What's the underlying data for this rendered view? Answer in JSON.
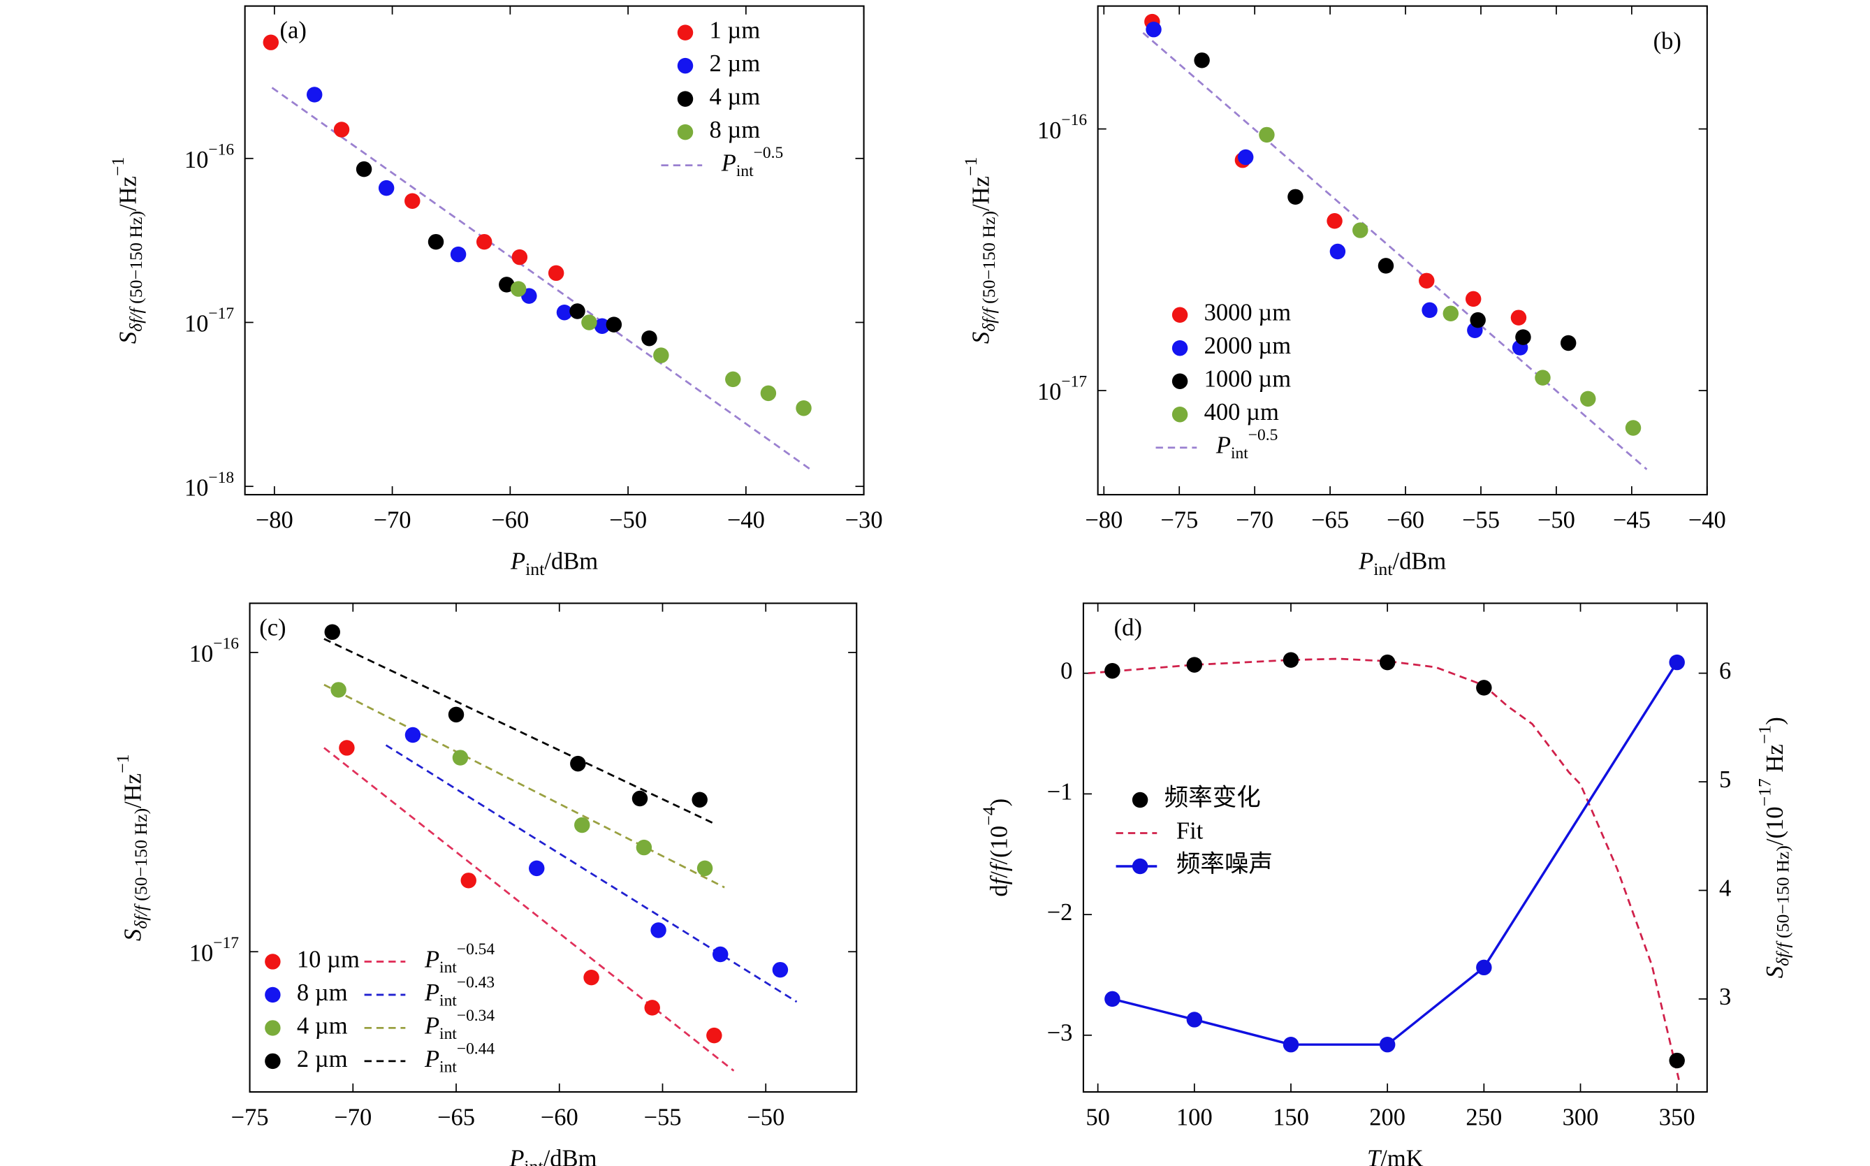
{
  "chart_data": [
    {
      "type": "scatter",
      "panel_label": "(a)",
      "xlabel": [
        {
          "text": "P",
          "role": "italic"
        },
        {
          "text": "int",
          "role": "sub"
        },
        {
          "text": "/dBm"
        }
      ],
      "ylabel": [
        {
          "text": "S",
          "role": "italic"
        },
        {
          "text": "δf/f",
          "role": "sub-italic"
        },
        {
          "text": " (50−150 Hz)",
          "role": "sub"
        },
        {
          "text": "/Hz"
        },
        {
          "text": "−1",
          "role": "sup"
        }
      ],
      "xlim": [
        -82.5,
        -30
      ],
      "ylim": [
        8.9e-19,
        8.5e-16
      ],
      "ylog": true,
      "xticks": [
        {
          "value": -80,
          "label": "−80"
        },
        {
          "value": -70,
          "label": "−70"
        },
        {
          "value": -60,
          "label": "−60"
        },
        {
          "value": -50,
          "label": "−50"
        },
        {
          "value": -40,
          "label": "−40"
        },
        {
          "value": -30,
          "label": "−30"
        }
      ],
      "yticks": [
        {
          "value": 1e-18,
          "label": [
            {
              "text": "10"
            },
            {
              "text": "−18",
              "role": "sup"
            }
          ]
        },
        {
          "value": 1e-17,
          "label": [
            {
              "text": "10"
            },
            {
              "text": "−17",
              "role": "sup"
            }
          ]
        },
        {
          "value": 1e-16,
          "label": [
            {
              "text": "10"
            },
            {
              "text": "−16",
              "role": "sup"
            }
          ]
        }
      ],
      "series": [
        {
          "name": "1 µm",
          "color": "#f01414",
          "kind": "scatter",
          "x": [
            -80.3,
            -74.3,
            -68.3,
            -62.2,
            -59.2,
            -56.1
          ],
          "values": [
            5.1e-16,
            1.5e-16,
            5.5e-17,
            3.1e-17,
            2.5e-17,
            2e-17
          ]
        },
        {
          "name": "2 µm",
          "color": "#1414f0",
          "kind": "scatter",
          "x": [
            -76.6,
            -70.5,
            -64.4,
            -58.4,
            -55.4,
            -52.2
          ],
          "values": [
            2.45e-16,
            6.6e-17,
            2.6e-17,
            1.45e-17,
            1.15e-17,
            9.5e-18
          ]
        },
        {
          "name": "4 µm",
          "color": "#000000",
          "kind": "scatter",
          "x": [
            -72.4,
            -66.3,
            -60.3,
            -54.3,
            -51.2,
            -48.2
          ],
          "values": [
            8.6e-17,
            3.1e-17,
            1.7e-17,
            1.17e-17,
            9.7e-18,
            8e-18
          ]
        },
        {
          "name": "8 µm",
          "color": "#7aac3a",
          "kind": "scatter",
          "x": [
            -59.3,
            -53.3,
            -47.2,
            -41.1,
            -38.1,
            -35.1
          ],
          "values": [
            1.6e-17,
            1e-17,
            6.3e-18,
            4.5e-18,
            3.7e-18,
            3e-18
          ]
        },
        {
          "name": [
            {
              "text": "P",
              "role": "italic"
            },
            {
              "text": "int",
              "role": "sub"
            },
            {
              "text": "−0.5",
              "role": "sup"
            }
          ],
          "color": "#9a80d0",
          "kind": "line",
          "dashed": true,
          "x": [
            -80.2,
            -34.4
          ],
          "values": [
            2.7e-16,
            1.25e-18
          ]
        }
      ]
    },
    {
      "type": "scatter",
      "panel_label": "(b)",
      "xlabel": [
        {
          "text": "P",
          "role": "italic"
        },
        {
          "text": "int",
          "role": "sub"
        },
        {
          "text": "/dBm"
        }
      ],
      "ylabel": [
        {
          "text": "S",
          "role": "italic"
        },
        {
          "text": "δf/f",
          "role": "sub-italic"
        },
        {
          "text": " (50−150 Hz)",
          "role": "sub"
        },
        {
          "text": "/Hz"
        },
        {
          "text": "−1",
          "role": "sup"
        }
      ],
      "xlim": [
        -80.4,
        -40
      ],
      "ylim": [
        4e-18,
        2.95e-16
      ],
      "ylog": true,
      "xticks": [
        {
          "value": -80,
          "label": "−80"
        },
        {
          "value": -75,
          "label": "−75"
        },
        {
          "value": -70,
          "label": "−70"
        },
        {
          "value": -65,
          "label": "−65"
        },
        {
          "value": -60,
          "label": "−60"
        },
        {
          "value": -55,
          "label": "−55"
        },
        {
          "value": -50,
          "label": "−50"
        },
        {
          "value": -45,
          "label": "−45"
        },
        {
          "value": -40,
          "label": "−40"
        }
      ],
      "yticks": [
        {
          "value": 1e-17,
          "label": [
            {
              "text": "10"
            },
            {
              "text": "−17",
              "role": "sup"
            }
          ]
        },
        {
          "value": 1e-16,
          "label": [
            {
              "text": "10"
            },
            {
              "text": "−16",
              "role": "sup"
            }
          ]
        }
      ],
      "series": [
        {
          "name": "3000 µm",
          "color": "#f01414",
          "kind": "scatter",
          "x": [
            -76.8,
            -70.8,
            -64.7,
            -58.6,
            -55.5,
            -52.5
          ],
          "values": [
            2.57e-16,
            7.6e-17,
            4.45e-17,
            2.63e-17,
            2.24e-17,
            1.9e-17
          ]
        },
        {
          "name": "2000 µm",
          "color": "#1414f0",
          "kind": "scatter",
          "x": [
            -76.7,
            -70.6,
            -64.5,
            -58.4,
            -55.4,
            -52.4
          ],
          "values": [
            2.4e-16,
            7.8e-17,
            3.4e-17,
            2.03e-17,
            1.7e-17,
            1.46e-17
          ]
        },
        {
          "name": "1000 µm",
          "color": "#000000",
          "kind": "scatter",
          "x": [
            -73.5,
            -67.3,
            -61.3,
            -55.2,
            -52.2,
            -49.2
          ],
          "values": [
            1.83e-16,
            5.5e-17,
            3e-17,
            1.86e-17,
            1.6e-17,
            1.52e-17
          ]
        },
        {
          "name": "400 µm",
          "color": "#7aac3a",
          "kind": "scatter",
          "x": [
            -69.2,
            -63.0,
            -57.0,
            -50.9,
            -47.9,
            -44.9
          ],
          "values": [
            9.5e-17,
            4.1e-17,
            1.97e-17,
            1.12e-17,
            9.3e-18,
            7.2e-18
          ]
        },
        {
          "name": [
            {
              "text": "P",
              "role": "italic"
            },
            {
              "text": "int",
              "role": "sub"
            },
            {
              "text": "−0.5",
              "role": "sup"
            }
          ],
          "color": "#9a80d0",
          "kind": "line",
          "dashed": true,
          "x": [
            -77.4,
            -44.0
          ],
          "values": [
            2.33e-16,
            5e-18
          ]
        }
      ]
    },
    {
      "type": "scatter",
      "panel_label": "(c)",
      "legend_columns": 2,
      "xlabel": [
        {
          "text": "P",
          "role": "italic"
        },
        {
          "text": "int",
          "role": "sub"
        },
        {
          "text": "/dBm"
        }
      ],
      "ylabel": [
        {
          "text": "S",
          "role": "italic"
        },
        {
          "text": "δf/f",
          "role": "sub-italic"
        },
        {
          "text": " (50−150 Hz)",
          "role": "sub"
        },
        {
          "text": "/Hz"
        },
        {
          "text": "−1",
          "role": "sup"
        }
      ],
      "xlim": [
        -75,
        -45.6
      ],
      "ylim": [
        3.4e-18,
        1.46e-16
      ],
      "ylog": true,
      "xticks": [
        {
          "value": -75,
          "label": "−75"
        },
        {
          "value": -70,
          "label": "−70"
        },
        {
          "value": -65,
          "label": "−65"
        },
        {
          "value": -60,
          "label": "−60"
        },
        {
          "value": -55,
          "label": "−55"
        },
        {
          "value": -50,
          "label": "−50"
        }
      ],
      "yticks": [
        {
          "value": 1e-17,
          "label": [
            {
              "text": "10"
            },
            {
              "text": "−17",
              "role": "sup"
            }
          ]
        },
        {
          "value": 1e-16,
          "label": [
            {
              "text": "10"
            },
            {
              "text": "−16",
              "role": "sup"
            }
          ]
        }
      ],
      "series": [
        {
          "name": "10 µm",
          "color": "#f01414",
          "kind": "scatter",
          "x": [
            -70.3,
            -64.4,
            -58.45,
            -55.5,
            -52.5
          ],
          "values": [
            4.8e-17,
            1.73e-17,
            8.2e-18,
            6.5e-18,
            5.25e-18
          ]
        },
        {
          "name": "8 µm",
          "color": "#1414f0",
          "kind": "scatter",
          "x": [
            -67.1,
            -61.1,
            -55.2,
            -52.2,
            -49.3
          ],
          "values": [
            5.3e-17,
            1.9e-17,
            1.18e-17,
            9.8e-18,
            8.7e-18
          ]
        },
        {
          "name": "4 µm",
          "color": "#7aac3a",
          "kind": "scatter",
          "x": [
            -70.7,
            -64.8,
            -58.9,
            -55.9,
            -52.95
          ],
          "values": [
            7.5e-17,
            4.45e-17,
            2.65e-17,
            2.23e-17,
            1.9e-17
          ]
        },
        {
          "name": "2 µm",
          "color": "#000000",
          "kind": "scatter",
          "x": [
            -71.0,
            -65.0,
            -59.1,
            -56.1,
            -53.2
          ],
          "values": [
            1.17e-16,
            6.2e-17,
            4.25e-17,
            3.25e-17,
            3.22e-17
          ]
        },
        {
          "name": [
            {
              "text": "P",
              "role": "italic"
            },
            {
              "text": "int",
              "role": "sub"
            },
            {
              "text": "−0.54",
              "role": "sup"
            }
          ],
          "color": "#e0305a",
          "kind": "line",
          "dashed": true,
          "x": [
            -71.4,
            -51.55
          ],
          "values": [
            4.8e-17,
            4e-18
          ]
        },
        {
          "name": [
            {
              "text": "P",
              "role": "italic"
            },
            {
              "text": "int",
              "role": "sub"
            },
            {
              "text": "−0.43",
              "role": "sup"
            }
          ],
          "color": "#2020d0",
          "kind": "line",
          "dashed": true,
          "x": [
            -68.4,
            -48.5
          ],
          "values": [
            4.9e-17,
            6.8e-18
          ]
        },
        {
          "name": [
            {
              "text": "P",
              "role": "italic"
            },
            {
              "text": "int",
              "role": "sub"
            },
            {
              "text": "−0.34",
              "role": "sup"
            }
          ],
          "color": "#99a040",
          "kind": "line",
          "dashed": true,
          "x": [
            -71.4,
            -52.0
          ],
          "values": [
            7.8e-17,
            1.64e-17
          ]
        },
        {
          "name": [
            {
              "text": "P",
              "role": "italic"
            },
            {
              "text": "int",
              "role": "sub"
            },
            {
              "text": "−0.44",
              "role": "sup"
            }
          ],
          "color": "#000000",
          "kind": "line",
          "dashed": true,
          "x": [
            -71.4,
            -52.5
          ],
          "values": [
            1.11e-16,
            2.68e-17
          ]
        }
      ]
    },
    {
      "type": "line",
      "panel_label": "(d)",
      "xlabel": [
        {
          "text": "T",
          "role": "italic"
        },
        {
          "text": "/mK"
        }
      ],
      "ylabel": [
        {
          "text": "d"
        },
        {
          "text": "f",
          "role": "italic"
        },
        {
          "text": "/"
        },
        {
          "text": "f",
          "role": "italic"
        },
        {
          "text": "/(10"
        },
        {
          "text": "−4",
          "role": "sup"
        },
        {
          "text": ")"
        }
      ],
      "y2label": [
        {
          "text": "S",
          "role": "italic"
        },
        {
          "text": "δf/f",
          "role": "sub-italic"
        },
        {
          "text": " (50−150 Hz)",
          "role": "sub"
        },
        {
          "text": "/(10"
        },
        {
          "text": "−17",
          "role": "sup"
        },
        {
          "text": " Hz"
        },
        {
          "text": "−1",
          "role": "sup"
        },
        {
          "text": ")"
        }
      ],
      "xlim": [
        42.5,
        365.6
      ],
      "ylim": [
        -3.47,
        0.58
      ],
      "y2lim": [
        2.144,
        6.644
      ],
      "xticks": [
        50,
        100,
        150,
        200,
        250,
        300,
        350
      ],
      "yticks": [
        0,
        {
          "value": -1,
          "label": "−1"
        },
        {
          "value": -2,
          "label": "−2"
        },
        {
          "value": -3,
          "label": "−3"
        }
      ],
      "y2ticks": [
        3,
        4,
        5,
        6
      ],
      "series": [
        {
          "name": "频率变化",
          "color": "#000000",
          "kind": "scatter",
          "x": [
            57.5,
            100,
            150,
            200,
            250,
            350
          ],
          "values": [
            0.02,
            0.07,
            0.11,
            0.09,
            -0.12,
            -3.21
          ]
        },
        {
          "name": "Fit",
          "color": "#d0204a",
          "kind": "line",
          "dashed": true,
          "x": [
            45,
            100,
            150,
            175,
            200,
            225,
            250,
            262,
            275,
            294,
            300,
            319,
            337,
            351
          ],
          "values": [
            0.0,
            0.07,
            0.11,
            0.12,
            0.1,
            0.05,
            -0.1,
            -0.27,
            -0.42,
            -0.82,
            -0.92,
            -1.62,
            -2.42,
            -3.37
          ]
        },
        {
          "name": "频率噪声",
          "color": "#1010e0",
          "kind": "line",
          "markers": true,
          "axis": "y2",
          "x": [
            57.5,
            100,
            150,
            200,
            250,
            350
          ],
          "values": [
            3.0,
            2.81,
            2.58,
            2.58,
            3.29,
            6.1
          ]
        }
      ]
    }
  ]
}
